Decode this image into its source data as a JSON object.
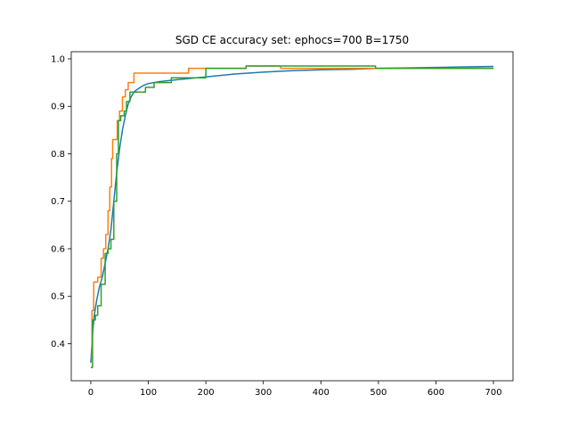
{
  "chart_data": {
    "type": "line",
    "title": "SGD CE accuracy set: ephocs=700 B=1750",
    "xlabel": "",
    "ylabel": "",
    "xlim": [
      -34,
      734
    ],
    "ylim": [
      0.322,
      1.015
    ],
    "x_ticks": [
      0,
      100,
      200,
      300,
      400,
      500,
      600,
      700
    ],
    "y_ticks": [
      0.4,
      0.5,
      0.6,
      0.7,
      0.8,
      0.9,
      1.0
    ],
    "x_tick_labels": [
      "0",
      "100",
      "200",
      "300",
      "400",
      "500",
      "600",
      "700"
    ],
    "y_tick_labels": [
      "0.4",
      "0.5",
      "0.6",
      "0.7",
      "0.8",
      "0.9",
      "1.0"
    ],
    "grid": false,
    "legend": "none",
    "series": [
      {
        "color": "#1f77b4",
        "step": false,
        "points": [
          [
            0,
            0.36
          ],
          [
            3,
            0.42
          ],
          [
            6,
            0.46
          ],
          [
            10,
            0.49
          ],
          [
            15,
            0.52
          ],
          [
            20,
            0.54
          ],
          [
            25,
            0.57
          ],
          [
            30,
            0.6
          ],
          [
            35,
            0.64
          ],
          [
            40,
            0.7
          ],
          [
            45,
            0.76
          ],
          [
            50,
            0.81
          ],
          [
            55,
            0.85
          ],
          [
            60,
            0.88
          ],
          [
            65,
            0.905
          ],
          [
            70,
            0.92
          ],
          [
            75,
            0.93
          ],
          [
            80,
            0.935
          ],
          [
            90,
            0.943
          ],
          [
            100,
            0.948
          ],
          [
            120,
            0.952
          ],
          [
            150,
            0.956
          ],
          [
            200,
            0.962
          ],
          [
            250,
            0.968
          ],
          [
            300,
            0.972
          ],
          [
            350,
            0.975
          ],
          [
            400,
            0.977
          ],
          [
            450,
            0.978
          ],
          [
            500,
            0.98
          ],
          [
            550,
            0.981
          ],
          [
            600,
            0.982
          ],
          [
            650,
            0.983
          ],
          [
            700,
            0.984
          ]
        ]
      },
      {
        "color": "#ff7f0e",
        "step": true,
        "points": [
          [
            0,
            0.37
          ],
          [
            2,
            0.47
          ],
          [
            5,
            0.53
          ],
          [
            12,
            0.54
          ],
          [
            18,
            0.58
          ],
          [
            22,
            0.6
          ],
          [
            26,
            0.63
          ],
          [
            30,
            0.68
          ],
          [
            33,
            0.73
          ],
          [
            36,
            0.79
          ],
          [
            38,
            0.83
          ],
          [
            46,
            0.87
          ],
          [
            50,
            0.89
          ],
          [
            55,
            0.92
          ],
          [
            60,
            0.935
          ],
          [
            65,
            0.95
          ],
          [
            75,
            0.97
          ],
          [
            170,
            0.98
          ],
          [
            270,
            0.985
          ],
          [
            330,
            0.98
          ],
          [
            700,
            0.98
          ]
        ]
      },
      {
        "color": "#2ca02c",
        "step": true,
        "points": [
          [
            0,
            0.35
          ],
          [
            3,
            0.45
          ],
          [
            8,
            0.46
          ],
          [
            12,
            0.48
          ],
          [
            18,
            0.525
          ],
          [
            25,
            0.59
          ],
          [
            30,
            0.6
          ],
          [
            35,
            0.62
          ],
          [
            40,
            0.7
          ],
          [
            45,
            0.8
          ],
          [
            48,
            0.87
          ],
          [
            52,
            0.88
          ],
          [
            58,
            0.89
          ],
          [
            62,
            0.91
          ],
          [
            68,
            0.93
          ],
          [
            95,
            0.94
          ],
          [
            110,
            0.95
          ],
          [
            140,
            0.96
          ],
          [
            200,
            0.98
          ],
          [
            270,
            0.985
          ],
          [
            495,
            0.98
          ],
          [
            700,
            0.98
          ]
        ]
      }
    ]
  }
}
